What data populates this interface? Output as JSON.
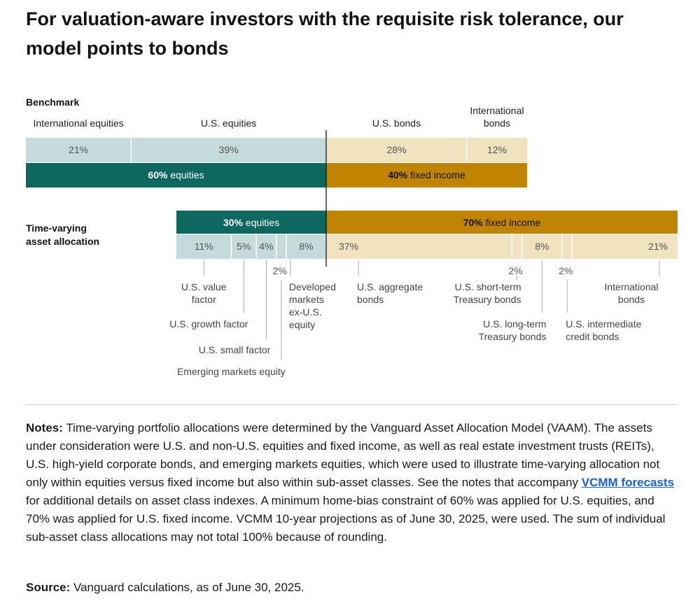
{
  "title": "For valuation-aware investors with the requisite risk tolerance, our model points to bonds",
  "colors": {
    "light_equity": "#c5dbdb",
    "dark_equity": "#0f6860",
    "light_fixed": "#f1e2c0",
    "dark_fixed": "#bf8402",
    "divider": "#ffffff",
    "callout_line": "#aaaaaa"
  },
  "chart_data": {
    "type": "bar",
    "orientation": "horizontal stacked",
    "benchmark": {
      "label": "Benchmark",
      "segments": [
        {
          "name": "International equities",
          "value": 21,
          "pct_label": "21%",
          "group": "equity"
        },
        {
          "name": "U.S. equities",
          "value": 39,
          "pct_label": "39%",
          "group": "equity"
        },
        {
          "name": "U.S. bonds",
          "value": 28,
          "pct_label": "28%",
          "group": "fixed"
        },
        {
          "name": "International bonds",
          "value": 12,
          "pct_label": "12%",
          "group": "fixed"
        }
      ],
      "totals": [
        {
          "bold": "60%",
          "text": " equities",
          "value": 60,
          "group": "equity"
        },
        {
          "bold": "40%",
          "text": " fixed income",
          "value": 40,
          "group": "fixed"
        }
      ]
    },
    "time_varying": {
      "label": "Time-varying asset allocation",
      "label_lines": [
        "Time-varying",
        "asset allocation"
      ],
      "totals": [
        {
          "bold": "30%",
          "text": " equities",
          "value": 30,
          "group": "equity"
        },
        {
          "bold": "70%",
          "text": " fixed income",
          "value": 70,
          "group": "fixed"
        }
      ],
      "segments": [
        {
          "name": "U.S. value factor",
          "value": 11,
          "pct_label": "11%",
          "group": "equity"
        },
        {
          "name": "U.S. growth factor",
          "value": 5,
          "pct_label": "5%",
          "group": "equity"
        },
        {
          "name": "U.S. small factor",
          "value": 4,
          "pct_label": "4%",
          "group": "equity"
        },
        {
          "name": "Emerging markets equity",
          "value": 2,
          "pct_label": "2%",
          "group": "equity"
        },
        {
          "name": "Developed markets ex-U.S. equity",
          "value": 8,
          "pct_label": "8%",
          "group": "equity"
        },
        {
          "name": "U.S. aggregate bonds",
          "value": 37,
          "pct_label": "37%",
          "group": "fixed"
        },
        {
          "name": "U.S. short-term Treasury bonds",
          "value": 2,
          "pct_label": "2%",
          "group": "fixed"
        },
        {
          "name": "U.S. long-term Treasury bonds",
          "value": 8,
          "pct_label": "8%",
          "group": "fixed"
        },
        {
          "name": "U.S. intermediate credit bonds",
          "value": 2,
          "pct_label": "2%",
          "group": "fixed"
        },
        {
          "name": "International bonds",
          "value": 21,
          "pct_label": "21%",
          "group": "fixed"
        }
      ]
    },
    "callouts": [
      {
        "lines": [
          "U.S. value",
          "factor"
        ],
        "segment": 0
      },
      {
        "lines": [
          "U.S. growth factor"
        ],
        "segment": 1
      },
      {
        "lines": [
          "U.S. small factor"
        ],
        "segment": 2
      },
      {
        "lines": [
          "Emerging markets equity"
        ],
        "segment": 3
      },
      {
        "lines": [
          "Developed",
          "markets",
          "ex-U.S.",
          "equity"
        ],
        "segment": 4
      },
      {
        "lines": [
          "U.S. aggregate",
          "bonds"
        ],
        "segment": 5
      },
      {
        "lines": [
          "U.S. short-term",
          "Treasury bonds"
        ],
        "segment": 6
      },
      {
        "lines": [
          "U.S. long-term",
          "Treasury bonds"
        ],
        "segment": 7
      },
      {
        "lines": [
          "U.S. intermediate",
          "credit bonds"
        ],
        "segment": 8
      },
      {
        "lines": [
          "International",
          "bonds"
        ],
        "segment": 9
      }
    ],
    "benchmark_headers": [
      {
        "lines": [
          "International equities"
        ],
        "segment": 0
      },
      {
        "lines": [
          "U.S. equities"
        ],
        "segment": 1
      },
      {
        "lines": [
          "U.S. bonds"
        ],
        "segment": 2
      },
      {
        "lines": [
          "International",
          "bonds"
        ],
        "segment": 3
      }
    ]
  },
  "notes": {
    "label": "Notes:",
    "text_before_link": " Time-varying portfolio allocations were determined by the Vanguard Asset Allocation Model (VAAM). The assets under consideration were U.S. and non-U.S. equities and fixed income, as well as real estate investment trusts (REITs), U.S. high-yield corporate bonds, and emerging markets equities, which were used to illustrate time-varying allocation not only within equities versus fixed income but also within sub-asset classes. See the notes that accompany ",
    "link_text": "VCMM forecasts",
    "text_after_link": " for additional details on asset class indexes. A minimum home-bias constraint of 60% was applied for U.S. equities, and 70% was applied for U.S. fixed income. VCMM 10-year projections as of June 30, 2025, were used. The sum of individual sub-asset class allocations may not total 100% because of rounding."
  },
  "source": {
    "label": "Source:",
    "text": " Vanguard calculations, as of June 30, 2025."
  }
}
